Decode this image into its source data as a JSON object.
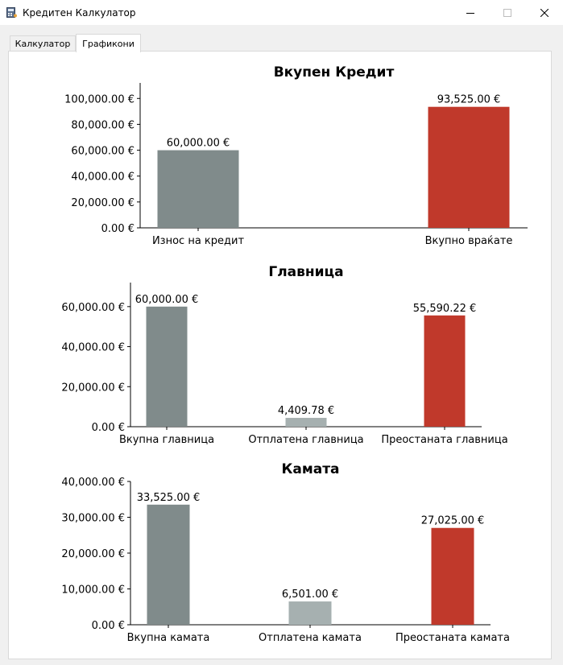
{
  "window": {
    "title": "Кредитен Калкулатор",
    "icon": "calculator-icon"
  },
  "tabs": [
    {
      "label": "Калкулатор",
      "active": false
    },
    {
      "label": "Графикони",
      "active": true
    }
  ],
  "colors": {
    "grey": "#808b8b",
    "light_grey": "#a6b0b0",
    "red": "#c0392b"
  },
  "chart_data": [
    {
      "type": "bar",
      "title": "Вкупен Кредит",
      "categories": [
        "Износ на кредит",
        "Вкупно враќате"
      ],
      "values": [
        60000.0,
        93525.0
      ],
      "data_labels": [
        "60,000.00 €",
        "93,525.00 €"
      ],
      "colors": [
        "#808b8b",
        "#c0392b"
      ],
      "yticks": [
        "0.00 €",
        "20,000.00 €",
        "40,000.00 €",
        "60,000.00 €",
        "80,000.00 €",
        "100,000.00 €"
      ],
      "ylim": [
        0,
        112000
      ]
    },
    {
      "type": "bar",
      "title": "Главница",
      "categories": [
        "Вкупна главница",
        "Отплатена главница",
        "Преостаната главница"
      ],
      "values": [
        60000.0,
        4409.78,
        55590.22
      ],
      "data_labels": [
        "60,000.00 €",
        "4,409.78 €",
        "55,590.22 €"
      ],
      "colors": [
        "#808b8b",
        "#a6b0b0",
        "#c0392b"
      ],
      "yticks": [
        "0.00 €",
        "20,000.00 €",
        "40,000.00 €",
        "60,000.00 €"
      ],
      "ylim": [
        0,
        72000
      ]
    },
    {
      "type": "bar",
      "title": "Камата",
      "categories": [
        "Вкупна камата",
        "Отплатена камата",
        "Преостаната камата"
      ],
      "values": [
        33525.0,
        6501.0,
        27025.0
      ],
      "data_labels": [
        "33,525.00 €",
        "6,501.00 €",
        "27,025.00 €"
      ],
      "colors": [
        "#808b8b",
        "#a6b0b0",
        "#c0392b"
      ],
      "yticks": [
        "0.00 €",
        "10,000.00 €",
        "20,000.00 €",
        "30,000.00 €",
        "40,000.00 €"
      ],
      "ylim": [
        0,
        40000
      ]
    }
  ]
}
